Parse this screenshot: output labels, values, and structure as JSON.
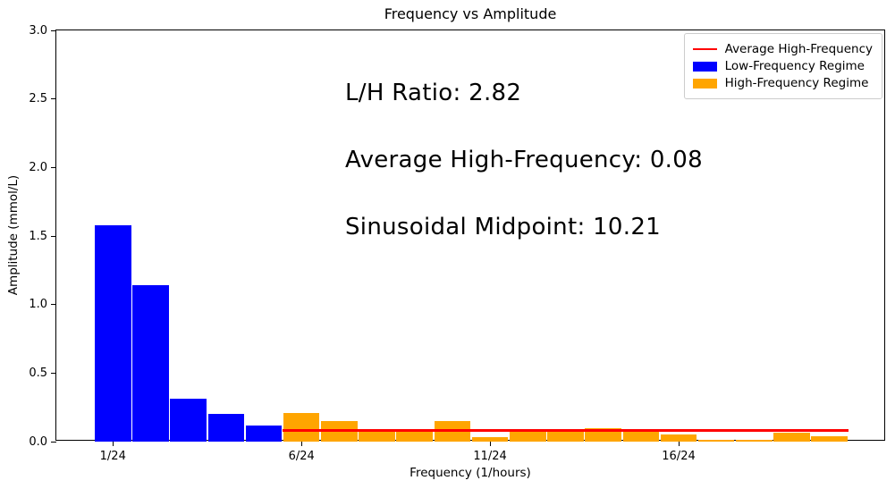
{
  "title": "Frequency vs Amplitude",
  "annotations": [
    {
      "label": "L/H Ratio: 2.82"
    },
    {
      "label": "Average High-Frequency: 0.08"
    },
    {
      "label": "Sinusoidal Midpoint: 10.21"
    }
  ],
  "chart_data": {
    "type": "bar",
    "title": "Frequency vs Amplitude",
    "xlabel": "Frequency (1/hours)",
    "ylabel": "Amplitude (mmol/L)",
    "ylim": [
      0,
      3
    ],
    "xlim_index": [
      -0.5,
      21.5
    ],
    "yticks": [
      0.0,
      0.5,
      1.0,
      1.5,
      2.0,
      2.5,
      3.0
    ],
    "xticks": [
      {
        "index": 1,
        "label": "1/24"
      },
      {
        "index": 6,
        "label": "6/24"
      },
      {
        "index": 11,
        "label": "11/24"
      },
      {
        "index": 16,
        "label": "16/24"
      }
    ],
    "bar_width_index": 0.96,
    "grid": false,
    "series": [
      {
        "name": "Low-Frequency Regime",
        "color": "#0000ff",
        "points": [
          {
            "x": 1,
            "y": 1.58
          },
          {
            "x": 2,
            "y": 1.14
          },
          {
            "x": 3,
            "y": 0.31
          },
          {
            "x": 4,
            "y": 0.2
          },
          {
            "x": 5,
            "y": 0.12
          }
        ]
      },
      {
        "name": "High-Frequency Regime",
        "color": "#ffa500",
        "points": [
          {
            "x": 6,
            "y": 0.21
          },
          {
            "x": 7,
            "y": 0.15
          },
          {
            "x": 8,
            "y": 0.07
          },
          {
            "x": 9,
            "y": 0.07
          },
          {
            "x": 10,
            "y": 0.15
          },
          {
            "x": 11,
            "y": 0.03
          },
          {
            "x": 12,
            "y": 0.075
          },
          {
            "x": 13,
            "y": 0.075
          },
          {
            "x": 14,
            "y": 0.1
          },
          {
            "x": 15,
            "y": 0.075
          },
          {
            "x": 16,
            "y": 0.05
          },
          {
            "x": 17,
            "y": 0.015
          },
          {
            "x": 18,
            "y": 0.015
          },
          {
            "x": 19,
            "y": 0.065
          },
          {
            "x": 20,
            "y": 0.04
          }
        ]
      }
    ],
    "reference_line": {
      "name": "Average High-Frequency",
      "color": "#ff0000",
      "y": 0.08,
      "x_start": 5.5,
      "x_end": 20.5,
      "thickness_px": 2.5
    },
    "legend": {
      "position": "upper right",
      "entries": [
        {
          "label": "Average High-Frequency",
          "swatch": "line",
          "color": "#ff0000"
        },
        {
          "label": "Low-Frequency Regime",
          "swatch": "patch",
          "color": "#0000ff"
        },
        {
          "label": "High-Frequency Regime",
          "swatch": "patch",
          "color": "#ffa500"
        }
      ]
    }
  }
}
